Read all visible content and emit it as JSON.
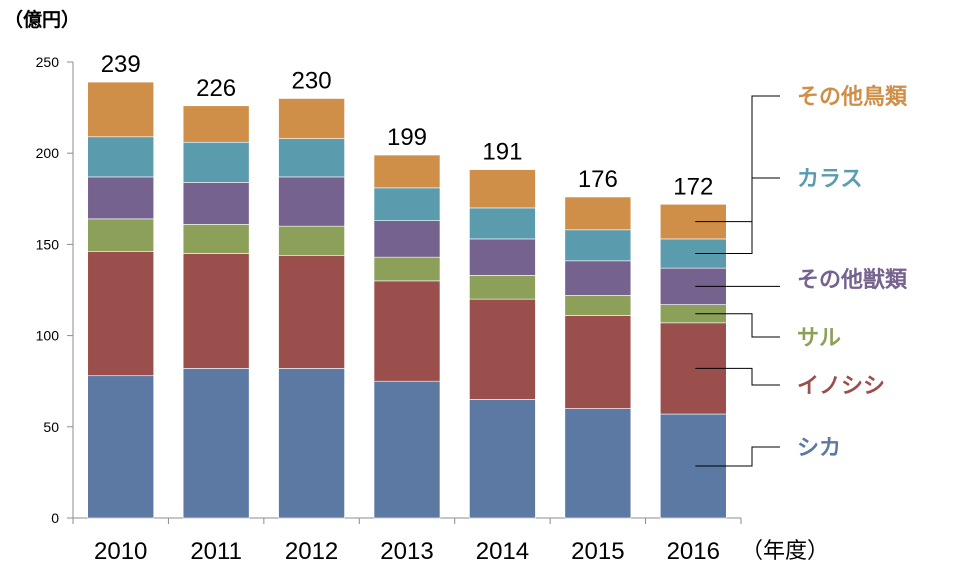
{
  "chart_data": {
    "type": "bar",
    "stacked": true,
    "categories": [
      "2010",
      "2011",
      "2012",
      "2013",
      "2014",
      "2015",
      "2016"
    ],
    "series": [
      {
        "name": "シカ",
        "color": "#5b79a3",
        "values": [
          78,
          82,
          82,
          75,
          65,
          60,
          57
        ]
      },
      {
        "name": "イノシシ",
        "color": "#9b4f4c",
        "values": [
          68,
          63,
          62,
          55,
          55,
          51,
          50
        ]
      },
      {
        "name": "サル",
        "color": "#8ca05a",
        "values": [
          18,
          16,
          16,
          13,
          13,
          11,
          10
        ]
      },
      {
        "name": "その他獣類",
        "color": "#76628f",
        "values": [
          23,
          23,
          27,
          20,
          20,
          19,
          20
        ]
      },
      {
        "name": "カラス",
        "color": "#5a9bae",
        "values": [
          22,
          22,
          21,
          18,
          17,
          17,
          16
        ]
      },
      {
        "name": "その他鳥類",
        "color": "#d08f48",
        "values": [
          30,
          20,
          22,
          18,
          21,
          18,
          19
        ]
      }
    ],
    "totals": [
      239,
      226,
      230,
      199,
      191,
      176,
      172
    ],
    "ylim": [
      0,
      250
    ],
    "yticks": [
      0,
      50,
      100,
      150,
      200,
      250
    ],
    "ylabel": "（億円）",
    "xlabel": "（年度）",
    "grid": false,
    "legend": "right"
  }
}
